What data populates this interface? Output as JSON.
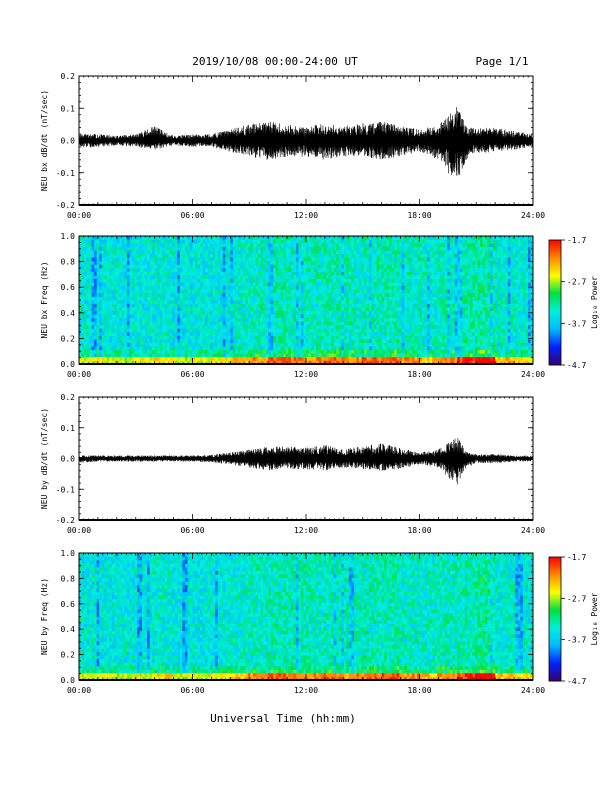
{
  "header": {
    "date_range": "2019/10/08  00:00-24:00 UT",
    "page": "Page 1/1"
  },
  "footer": {
    "xlabel": "Universal Time (hh:mm)"
  },
  "chart_data": [
    {
      "type": "line",
      "ylabel": "NEU bx dB/dt (nT/sec)",
      "xlim": [
        "00:00",
        "24:00"
      ],
      "ylim": [
        -0.2,
        0.2
      ],
      "xticks": [
        "00:00",
        "06:00",
        "12:00",
        "18:00",
        "24:00"
      ],
      "yticks": [
        "-0.2",
        "-0.1",
        "0.0",
        "0.1",
        "0.2"
      ],
      "envelope": {
        "x_hours": [
          0,
          1,
          2,
          3,
          4,
          5,
          6,
          7,
          8,
          9,
          10,
          11,
          12,
          13,
          14,
          15,
          16,
          17,
          18,
          19,
          19.5,
          20,
          20.5,
          21,
          22,
          23,
          24
        ],
        "max": [
          0.02,
          0.02,
          0.015,
          0.02,
          0.045,
          0.015,
          0.02,
          0.02,
          0.035,
          0.05,
          0.06,
          0.05,
          0.04,
          0.06,
          0.045,
          0.055,
          0.06,
          0.045,
          0.035,
          0.05,
          0.075,
          0.11,
          0.04,
          0.04,
          0.04,
          0.03,
          0.02
        ],
        "min": [
          -0.025,
          -0.02,
          -0.015,
          -0.02,
          -0.03,
          -0.015,
          -0.02,
          -0.02,
          -0.035,
          -0.05,
          -0.06,
          -0.05,
          -0.05,
          -0.06,
          -0.05,
          -0.05,
          -0.06,
          -0.05,
          -0.035,
          -0.06,
          -0.1,
          -0.13,
          -0.06,
          -0.04,
          -0.035,
          -0.03,
          -0.02
        ]
      }
    },
    {
      "type": "heatmap",
      "ylabel": "NEU bx Freq (Hz)",
      "xlim": [
        "00:00",
        "24:00"
      ],
      "ylim": [
        0.0,
        1.0
      ],
      "xticks": [
        "00:00",
        "06:00",
        "12:00",
        "18:00",
        "24:00"
      ],
      "yticks": [
        "0.0",
        "0.2",
        "0.4",
        "0.6",
        "0.8",
        "1.0"
      ],
      "colorbar": {
        "label": "Log₁₀ Power",
        "range": [
          -4.7,
          -1.7
        ],
        "ticks": [
          "-1.7",
          "-2.7",
          "-3.7",
          "-4.7"
        ],
        "colormap": [
          "#3a0070",
          "#0022ff",
          "#00b8ff",
          "#00f0e0",
          "#00e040",
          "#ffff00",
          "#ff8800",
          "#ff0000"
        ]
      },
      "low_freq_band_hz": [
        0.0,
        0.05
      ]
    },
    {
      "type": "line",
      "ylabel": "NEU by dB/dt (nT/sec)",
      "xlim": [
        "00:00",
        "24:00"
      ],
      "ylim": [
        -0.2,
        0.2
      ],
      "xticks": [
        "00:00",
        "06:00",
        "12:00",
        "18:00",
        "24:00"
      ],
      "yticks": [
        "-0.2",
        "-0.1",
        "0.0",
        "0.1",
        "0.2"
      ],
      "envelope": {
        "x_hours": [
          0,
          1,
          2,
          3,
          4,
          5,
          6,
          7,
          8,
          9,
          10,
          11,
          12,
          13,
          14,
          15,
          16,
          17,
          18,
          19,
          19.5,
          20,
          20.5,
          21,
          22,
          23,
          24
        ],
        "max": [
          0.01,
          0.01,
          0.01,
          0.01,
          0.01,
          0.01,
          0.01,
          0.012,
          0.02,
          0.03,
          0.04,
          0.04,
          0.035,
          0.045,
          0.03,
          0.04,
          0.05,
          0.035,
          0.02,
          0.03,
          0.05,
          0.07,
          0.02,
          0.015,
          0.015,
          0.01,
          0.01
        ],
        "min": [
          -0.015,
          -0.01,
          -0.01,
          -0.01,
          -0.01,
          -0.01,
          -0.01,
          -0.012,
          -0.02,
          -0.03,
          -0.04,
          -0.035,
          -0.035,
          -0.04,
          -0.03,
          -0.035,
          -0.04,
          -0.035,
          -0.02,
          -0.03,
          -0.06,
          -0.1,
          -0.03,
          -0.015,
          -0.015,
          -0.01,
          -0.01
        ]
      }
    },
    {
      "type": "heatmap",
      "ylabel": "NEU by Freq (Hz)",
      "xlim": [
        "00:00",
        "24:00"
      ],
      "ylim": [
        0.0,
        1.0
      ],
      "xticks": [
        "00:00",
        "06:00",
        "12:00",
        "18:00",
        "24:00"
      ],
      "yticks": [
        "0.0",
        "0.2",
        "0.4",
        "0.6",
        "0.8",
        "1.0"
      ],
      "colorbar": {
        "label": "Log₁₀ Power",
        "range": [
          -4.7,
          -1.7
        ],
        "ticks": [
          "-1.7",
          "-2.7",
          "-3.7",
          "-4.7"
        ],
        "colormap": [
          "#3a0070",
          "#0022ff",
          "#00b8ff",
          "#00f0e0",
          "#00e040",
          "#ffff00",
          "#ff8800",
          "#ff0000"
        ]
      },
      "low_freq_band_hz": [
        0.0,
        0.05
      ]
    }
  ]
}
